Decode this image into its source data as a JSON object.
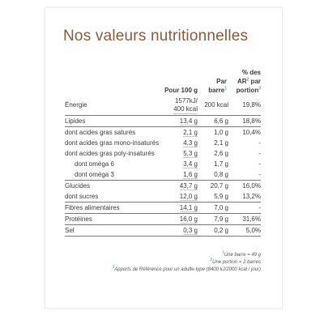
{
  "title": "Nos valeurs nutritionnelles",
  "headers": {
    "per100": "Pour 100 g",
    "perBarLine1": "Par",
    "perBarLine2": "barre",
    "perBarSup": "1",
    "arLine1": "% des",
    "arLine2a": "AR",
    "arSup": "2",
    "arLine2b": " par",
    "arLine3": "portion",
    "arSup3": "3"
  },
  "rows": [
    {
      "label": "Énergie",
      "per100": "1577kJ/\n400 kcal",
      "perBar": "200 kcal",
      "ar": "19,8%",
      "style": "tall line",
      "indent": false
    },
    {
      "label": "Lipides",
      "per100": "13,4 g",
      "perBar": "6,6 g",
      "ar": "18,8%",
      "style": "line",
      "indent": false
    },
    {
      "label": "dont acides gras saturés",
      "per100": "2,1 g",
      "perBar": "1,0 g",
      "ar": "10,4%",
      "style": "sub",
      "indent": false
    },
    {
      "label": "dont acides gras mono-insaturés",
      "per100": "4,3 g",
      "perBar": "2,1 g",
      "ar": "-",
      "style": "sub",
      "indent": false
    },
    {
      "label": "dont acides gras poly-insaturés",
      "per100": "5,3 g",
      "perBar": "2,6 g",
      "ar": "-",
      "style": "sub",
      "indent": false
    },
    {
      "label": "dont oméga 6",
      "per100": "3,4 g",
      "perBar": "1,7 g",
      "ar": "-",
      "style": "sub",
      "indent": true
    },
    {
      "label": "dont oméga 3",
      "per100": "1,6 g",
      "perBar": "0,8 g",
      "ar": "-",
      "style": "line",
      "indent": true
    },
    {
      "label": "Glucides",
      "per100": "43,7 g",
      "perBar": "20,7 g",
      "ar": "16,0%",
      "style": "sub",
      "indent": false
    },
    {
      "label": "dont sucres",
      "per100": "12,0 g",
      "perBar": "5,9 g",
      "ar": "13,2%",
      "style": "line",
      "indent": false
    },
    {
      "label": "Fibres alimentaires",
      "per100": "14,1 g",
      "perBar": "7,0 g",
      "ar": "-",
      "style": "line",
      "indent": false
    },
    {
      "label": "Protéines",
      "per100": "16,0 g",
      "perBar": "7,9 g",
      "ar": "31,6%",
      "style": "line",
      "indent": false
    },
    {
      "label": "Sel",
      "per100": "0,3 g",
      "perBar": "0,2 g",
      "ar": "5,0%",
      "style": "line",
      "indent": false
    }
  ],
  "footnotes": {
    "n1sup": "1",
    "n1": "Une barre = 49 g",
    "n2sup": "2",
    "n2": "Une portion = 2 barres",
    "n3sup": "3",
    "n3": "Apports de Référence pour un adulte-type (8400 kJ/2000 kcal / jour)"
  },
  "colors": {
    "title": "#8b5a3c",
    "superscript": "#4aa88a",
    "text": "#3a3a3a"
  }
}
